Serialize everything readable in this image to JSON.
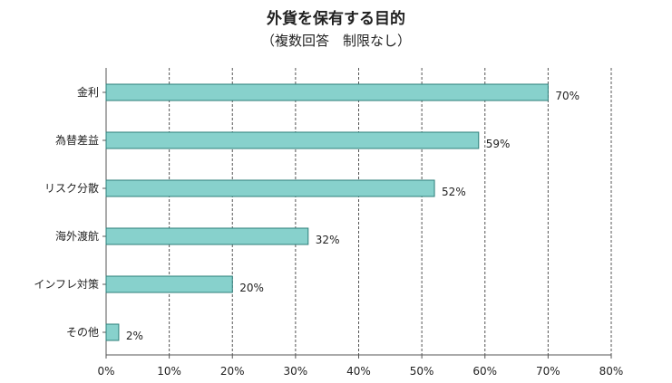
{
  "chart_data": {
    "type": "bar",
    "orientation": "horizontal",
    "title": "外貨を保有する目的",
    "subtitle": "（複数回答　制限なし）",
    "categories": [
      "金利",
      "為替差益",
      "リスク分散",
      "海外渡航",
      "インフレ対策",
      "その他"
    ],
    "values": [
      70,
      59,
      52,
      32,
      20,
      2
    ],
    "value_labels": [
      "70%",
      "59%",
      "52%",
      "32%",
      "20%",
      "2%"
    ],
    "xlim": [
      0,
      80
    ],
    "x_ticks": [
      0,
      10,
      20,
      30,
      40,
      50,
      60,
      70,
      80
    ],
    "x_tick_labels": [
      "0%",
      "10%",
      "20%",
      "30%",
      "40%",
      "50%",
      "60%",
      "70%",
      "80%"
    ],
    "grid": "vertical dashed",
    "bar_color": "#87d1cc",
    "bar_edge_color": "#2e7f7a"
  }
}
